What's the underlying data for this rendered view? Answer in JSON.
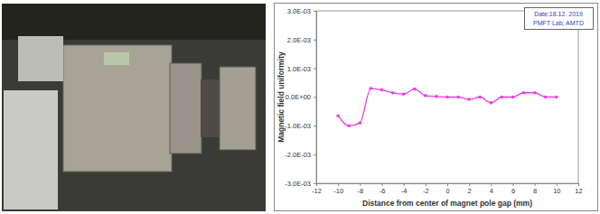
{
  "chart_data": {
    "type": "line",
    "x_label": "Distance from center of magnet pole gap (mm)",
    "y_label": "Magnetic field uniformity",
    "annotations": [
      "Date:18.12. 2019",
      "PMFT Lab, AMTD"
    ],
    "x": [
      -10,
      -9,
      -8,
      -7,
      -6,
      -5,
      -4,
      -3,
      -2,
      -1,
      0,
      1,
      2,
      3,
      4,
      5,
      6,
      7,
      8,
      9,
      10
    ],
    "values": [
      -0.00065,
      -0.001,
      -0.0009,
      0.0003,
      0.00025,
      0.00015,
      0.0001,
      0.00028,
      5e-05,
      2e-05,
      0.0,
      0.0,
      -8e-05,
      0.0,
      -0.0002,
      0.0,
      0.0,
      0.00015,
      0.00015,
      0.0,
      0.0
    ],
    "color": "#e83ee8",
    "marker": "circle",
    "line_style": "solid",
    "grid": false,
    "xlim": [
      -12,
      12
    ],
    "xticks": [
      -12,
      -10,
      -8,
      -6,
      -4,
      -2,
      0,
      2,
      4,
      6,
      8,
      10,
      12
    ],
    "ylim": [
      -0.003,
      0.003
    ],
    "yticks": [
      {
        "value": -0.003,
        "label": "-3.0E-03"
      },
      {
        "value": -0.002,
        "label": "-2.0E-03"
      },
      {
        "value": -0.001,
        "label": "-1.0E-03"
      },
      {
        "value": 0,
        "label": "0.0E+00"
      },
      {
        "value": 0.001,
        "label": "1.0E-03"
      },
      {
        "value": 0.002,
        "label": "2.0E-03"
      },
      {
        "value": 0.003,
        "label": "3.0E-03"
      }
    ]
  }
}
